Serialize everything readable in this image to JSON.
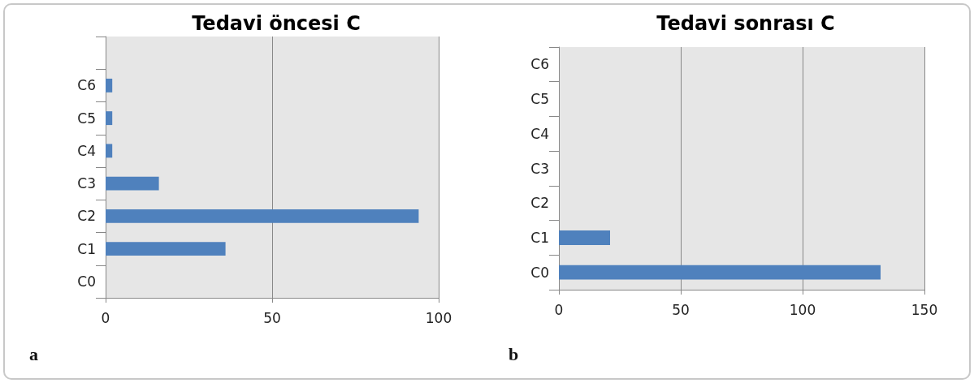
{
  "chart_data": [
    {
      "type": "bar",
      "orientation": "horizontal",
      "title": "Tedavi öncesi C",
      "categories": [
        null,
        "C6",
        "C5",
        "C4",
        "C3",
        "C2",
        "C1",
        "C0"
      ],
      "values": [
        null,
        2,
        2,
        2,
        16,
        94,
        36,
        0
      ],
      "color": "#4f81bd",
      "xlim": [
        0,
        100
      ],
      "xticks": [
        0,
        50,
        100
      ],
      "grid": "x",
      "annotations": [
        "a"
      ]
    },
    {
      "type": "bar",
      "orientation": "horizontal",
      "title": "Tedavi sonrası C",
      "categories": [
        "C6",
        "C5",
        "C4",
        "C3",
        "C2",
        "C1",
        "C0"
      ],
      "values": [
        0,
        0,
        0,
        0,
        0,
        21,
        132
      ],
      "color": "#4f81bd",
      "xlim": [
        0,
        150
      ],
      "xticks": [
        0,
        50,
        100,
        150
      ],
      "grid": "x",
      "annotations": [
        "b"
      ]
    }
  ]
}
